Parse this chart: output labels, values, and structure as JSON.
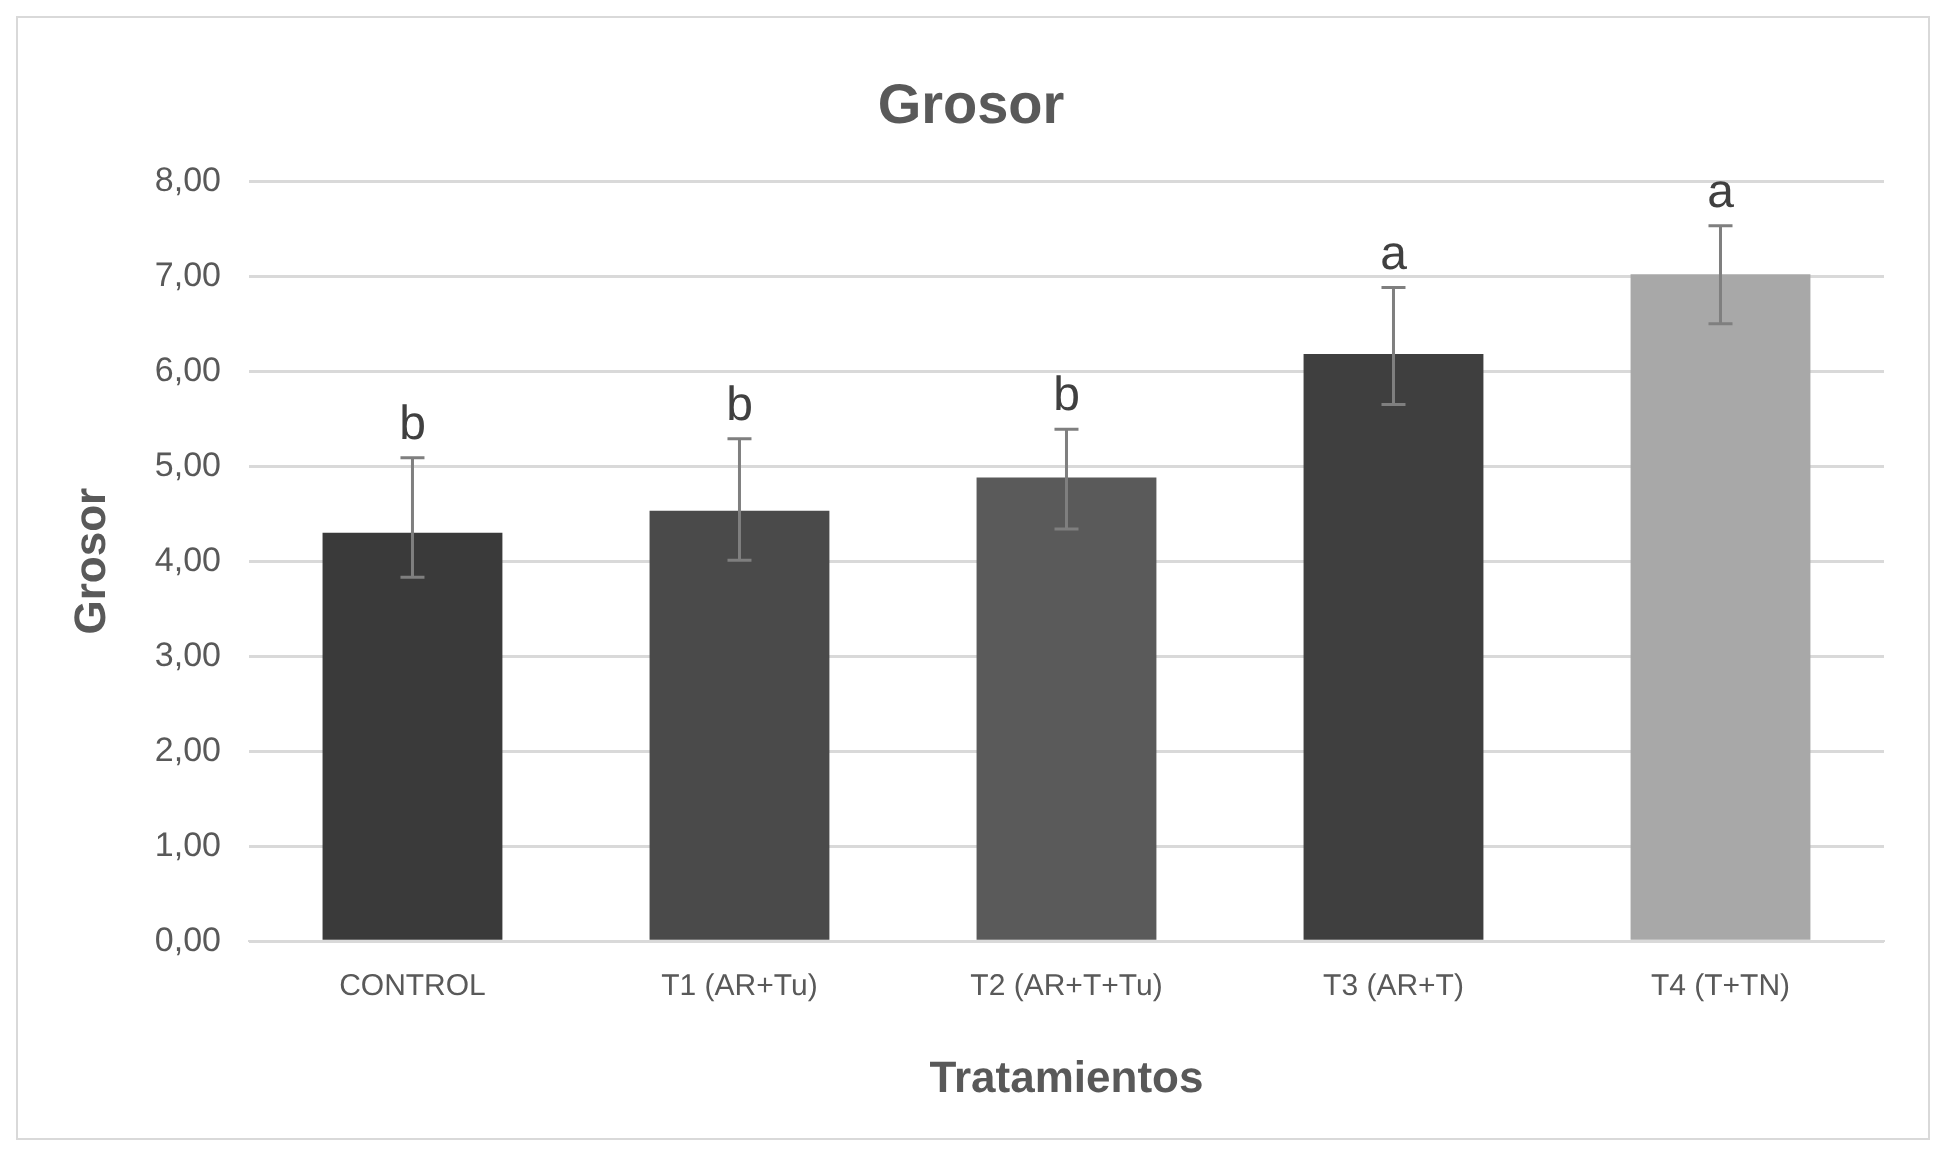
{
  "chart_data": {
    "type": "bar",
    "title": "Grosor",
    "xlabel": "Tratamientos",
    "ylabel": "Grosor",
    "categories": [
      "CONTROL",
      "T1 (AR+Tu)",
      "T2 (AR+T+Tu)",
      "T3 (AR+T)",
      "T4 (T+TN)"
    ],
    "values": [
      4.3,
      4.53,
      4.88,
      6.18,
      7.02
    ],
    "colors": [
      "#3a3a3a",
      "#4a4a4a",
      "#5a5a5a",
      "#3f3f3f",
      "#a8a8a8"
    ],
    "errors": [
      [
        3.83,
        5.09
      ],
      [
        4.01,
        5.29
      ],
      [
        4.34,
        5.39
      ],
      [
        5.65,
        6.88
      ],
      [
        6.5,
        7.53
      ]
    ],
    "ylim": [
      0,
      8
    ],
    "yticks": [
      {
        "value": 0,
        "label": "0,00"
      },
      {
        "value": 1,
        "label": "1,00"
      },
      {
        "value": 2,
        "label": "2,00"
      },
      {
        "value": 3,
        "label": "3,00"
      },
      {
        "value": 4,
        "label": "4,00"
      },
      {
        "value": 5,
        "label": "5,00"
      },
      {
        "value": 6,
        "label": "6,00"
      },
      {
        "value": 7,
        "label": "7,00"
      },
      {
        "value": 8,
        "label": "8,00"
      }
    ],
    "grid": "y",
    "legend": false,
    "annotations": [
      {
        "text": "b",
        "x": "CONTROL",
        "y": 5.09
      },
      {
        "text": "b",
        "x": "T1 (AR+Tu)",
        "y": 5.29
      },
      {
        "text": "b",
        "x": "T2 (AR+T+Tu)",
        "y": 5.39
      },
      {
        "text": "a",
        "x": "T3 (AR+T)",
        "y": 6.88
      },
      {
        "text": "a",
        "x": "T4 (T+TN)",
        "y": 7.53
      }
    ]
  }
}
